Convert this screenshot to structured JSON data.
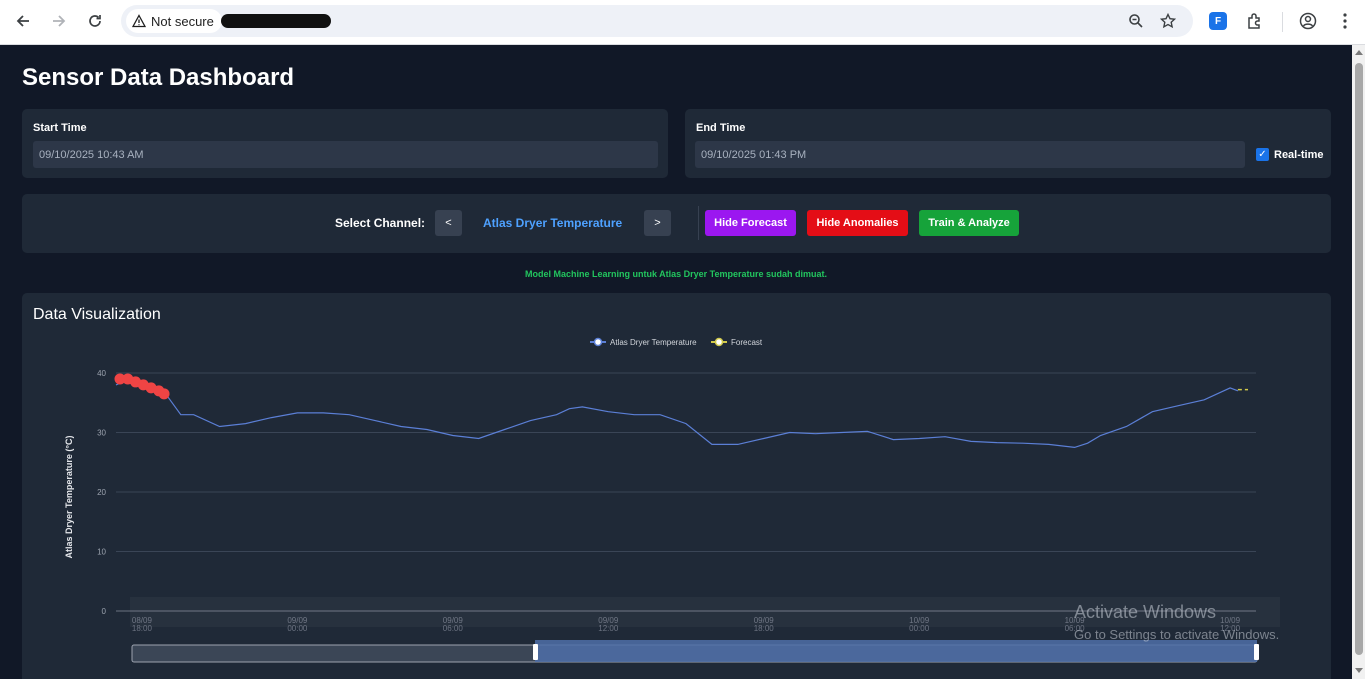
{
  "browser": {
    "security_label": "Not secure"
  },
  "page": {
    "title": "Sensor Data Dashboard"
  },
  "time_range": {
    "start_label": "Start Time",
    "start_value": "09/10/2025 10:43 AM",
    "end_label": "End Time",
    "end_value": "09/10/2025 01:43 PM",
    "realtime_label": "Real-time",
    "realtime_checked": true
  },
  "controls": {
    "select_label": "Select Channel:",
    "prev_label": "<",
    "next_label": ">",
    "channel_name": "Atlas Dryer Temperature",
    "hide_forecast": "Hide Forecast",
    "hide_anomalies": "Hide Anomalies",
    "train_analyze": "Train & Analyze",
    "colors": {
      "forecast": "#9b17f0",
      "anomalies": "#e40d16",
      "train": "#16a33a"
    }
  },
  "status_message": "Model Machine Learning untuk Atlas Dryer Temperature sudah dimuat.",
  "visualization": {
    "title": "Data Visualization"
  },
  "chart_data": {
    "type": "line",
    "title": "",
    "ylabel": "Atlas Dryer Temperature (°C)",
    "xlabel": "",
    "ylim": [
      0,
      40
    ],
    "yticks": [
      0,
      10,
      20,
      30,
      40
    ],
    "xticks": [
      "08/09 18:00",
      "09/09 00:00",
      "09/09 06:00",
      "09/09 12:00",
      "09/09 18:00",
      "10/09 00:00",
      "10/09 06:00",
      "10/09 12:00"
    ],
    "xrange_hours": [
      -1.0,
      43.0
    ],
    "legend": [
      "Atlas Dryer Temperature",
      "Forecast"
    ],
    "series": [
      {
        "name": "Atlas Dryer Temperature",
        "color": "#5b7fd6",
        "x_hours": [
          -1.0,
          -0.5,
          0.0,
          0.5,
          1.0,
          1.5,
          2.0,
          3.0,
          4.0,
          5.0,
          6.0,
          7.0,
          8.0,
          9.0,
          10.0,
          11.0,
          12.0,
          13.0,
          14.0,
          15.0,
          16.0,
          16.5,
          17.0,
          18.0,
          19.0,
          20.0,
          21.0,
          22.0,
          23.0,
          24.0,
          25.0,
          26.0,
          27.0,
          28.0,
          29.0,
          30.0,
          31.0,
          32.0,
          33.0,
          34.0,
          35.0,
          36.0,
          36.5,
          37.0,
          38.0,
          39.0,
          40.0,
          41.0,
          42.0,
          42.3
        ],
        "values": [
          38.0,
          39.0,
          38.0,
          37.0,
          36.0,
          33.0,
          33.0,
          31.0,
          31.5,
          32.5,
          33.3,
          33.3,
          33.0,
          32.0,
          31.0,
          30.5,
          29.5,
          29.0,
          30.5,
          32.0,
          33.0,
          34.0,
          34.3,
          33.5,
          33.0,
          33.0,
          31.5,
          28.0,
          28.0,
          29.0,
          30.0,
          29.8,
          30.0,
          30.2,
          28.8,
          29.0,
          29.3,
          28.5,
          28.3,
          28.2,
          28.0,
          27.5,
          28.2,
          29.5,
          31.0,
          33.5,
          34.5,
          35.5,
          37.5,
          37.0
        ]
      },
      {
        "name": "Forecast",
        "color": "#d1c94a",
        "x_hours": [
          42.3,
          43.0
        ],
        "values": [
          37.2,
          37.2
        ]
      },
      {
        "name": "Anomalies",
        "color": "#ef4444",
        "x_hours": [
          -1.0,
          -0.7,
          -0.4,
          -0.1,
          0.2,
          0.5,
          0.7
        ],
        "values": [
          39.0,
          39.0,
          38.5,
          38.0,
          37.5,
          37.0,
          36.5
        ]
      }
    ]
  },
  "overlay": {
    "watermark_title": "Activate Windows",
    "watermark_sub": "Go to Settings to activate Windows."
  }
}
